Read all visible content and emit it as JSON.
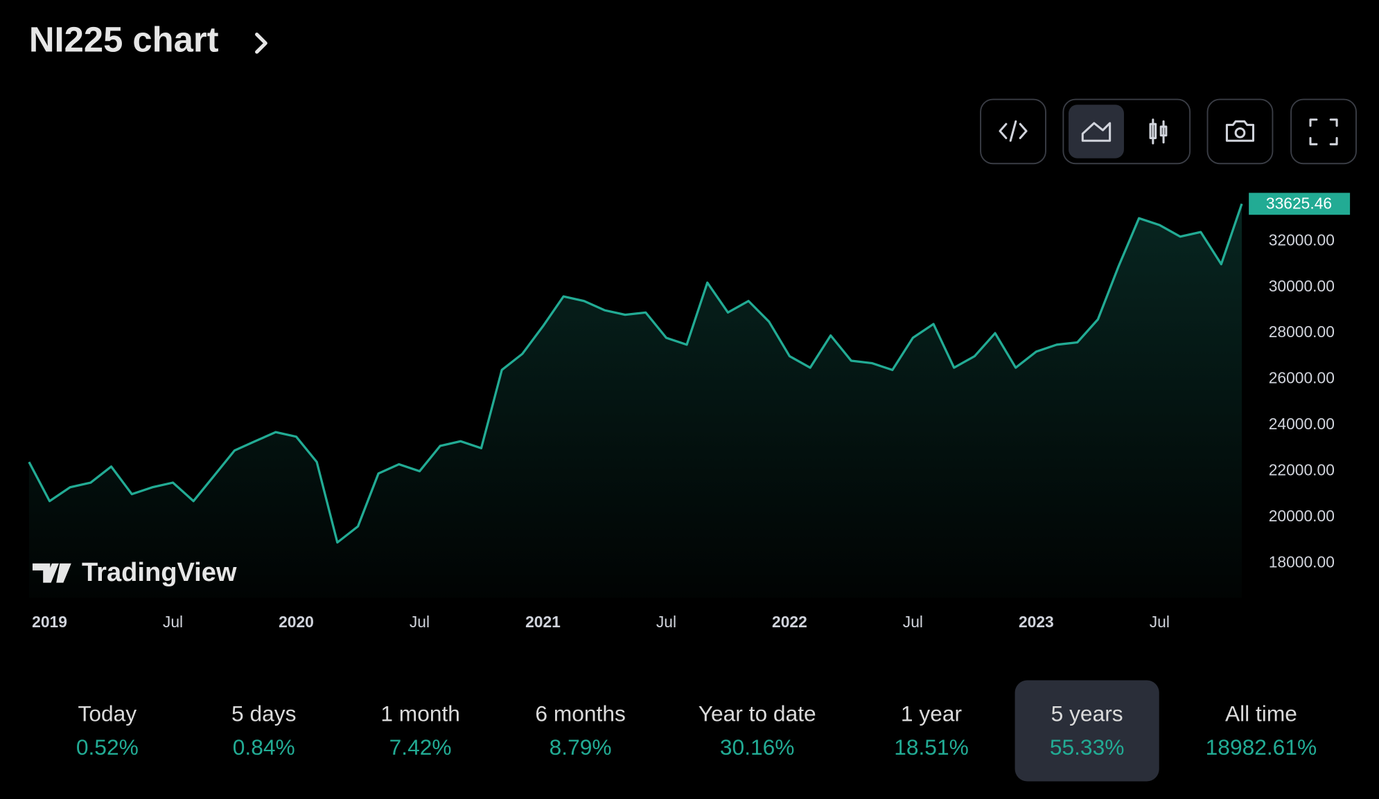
{
  "title": "NI225 chart",
  "watermark": "TradingView",
  "chart_data": {
    "type": "area",
    "color": "#22ab94",
    "x": [
      "2018-12",
      "2019-01",
      "2019-02",
      "2019-03",
      "2019-04",
      "2019-05",
      "2019-06",
      "2019-07",
      "2019-08",
      "2019-09",
      "2019-10",
      "2019-11",
      "2019-12",
      "2020-01",
      "2020-02",
      "2020-03",
      "2020-04",
      "2020-05",
      "2020-06",
      "2020-07",
      "2020-08",
      "2020-09",
      "2020-10",
      "2020-11",
      "2020-12",
      "2021-01",
      "2021-02",
      "2021-03",
      "2021-04",
      "2021-05",
      "2021-06",
      "2021-07",
      "2021-08",
      "2021-09",
      "2021-10",
      "2021-11",
      "2021-12",
      "2022-01",
      "2022-02",
      "2022-03",
      "2022-04",
      "2022-05",
      "2022-06",
      "2022-07",
      "2022-08",
      "2022-09",
      "2022-10",
      "2022-11",
      "2022-12",
      "2023-01",
      "2023-02",
      "2023-03",
      "2023-04",
      "2023-05",
      "2023-06",
      "2023-07",
      "2023-08",
      "2023-09",
      "2023-10",
      "2023-11"
    ],
    "values": [
      22400,
      20700,
      21300,
      21500,
      22200,
      21000,
      21300,
      21500,
      20700,
      21800,
      22900,
      23300,
      23700,
      23500,
      22400,
      18900,
      19600,
      21900,
      22300,
      22000,
      23100,
      23300,
      23000,
      26400,
      27100,
      28300,
      29600,
      29400,
      29000,
      28800,
      28900,
      27800,
      27500,
      30200,
      28900,
      29400,
      28500,
      27000,
      26500,
      27900,
      26800,
      26700,
      26400,
      27800,
      28400,
      26500,
      27000,
      28000,
      26500,
      27200,
      27500,
      27600,
      28600,
      30900,
      33000,
      32700,
      32200,
      32400,
      31000,
      33625.46
    ],
    "ylim": [
      16500,
      34000
    ],
    "yticks": [
      {
        "value": 18000,
        "label": "18000.00"
      },
      {
        "value": 20000,
        "label": "20000.00"
      },
      {
        "value": 22000,
        "label": "22000.00"
      },
      {
        "value": 24000,
        "label": "24000.00"
      },
      {
        "value": 26000,
        "label": "26000.00"
      },
      {
        "value": 28000,
        "label": "28000.00"
      },
      {
        "value": 30000,
        "label": "30000.00"
      },
      {
        "value": 32000,
        "label": "32000.00"
      }
    ],
    "xticks": [
      {
        "value": "2019-01",
        "label": "2019"
      },
      {
        "value": "2019-07",
        "label": "Jul"
      },
      {
        "value": "2020-01",
        "label": "2020"
      },
      {
        "value": "2020-07",
        "label": "Jul"
      },
      {
        "value": "2021-01",
        "label": "2021"
      },
      {
        "value": "2021-07",
        "label": "Jul"
      },
      {
        "value": "2022-01",
        "label": "2022"
      },
      {
        "value": "2022-07",
        "label": "Jul"
      },
      {
        "value": "2023-01",
        "label": "2023"
      },
      {
        "value": "2023-07",
        "label": "Jul"
      }
    ]
  },
  "periods": [
    {
      "label": "Today",
      "change": "0.52%"
    },
    {
      "label": "5 days",
      "change": "0.84%"
    },
    {
      "label": "1 month",
      "change": "7.42%"
    },
    {
      "label": "6 months",
      "change": "8.79%"
    },
    {
      "label": "Year to date",
      "change": "30.16%"
    },
    {
      "label": "1 year",
      "change": "18.51%"
    },
    {
      "label": "5 years",
      "change": "55.33%",
      "active": true
    },
    {
      "label": "All time",
      "change": "18982.61%"
    }
  ]
}
